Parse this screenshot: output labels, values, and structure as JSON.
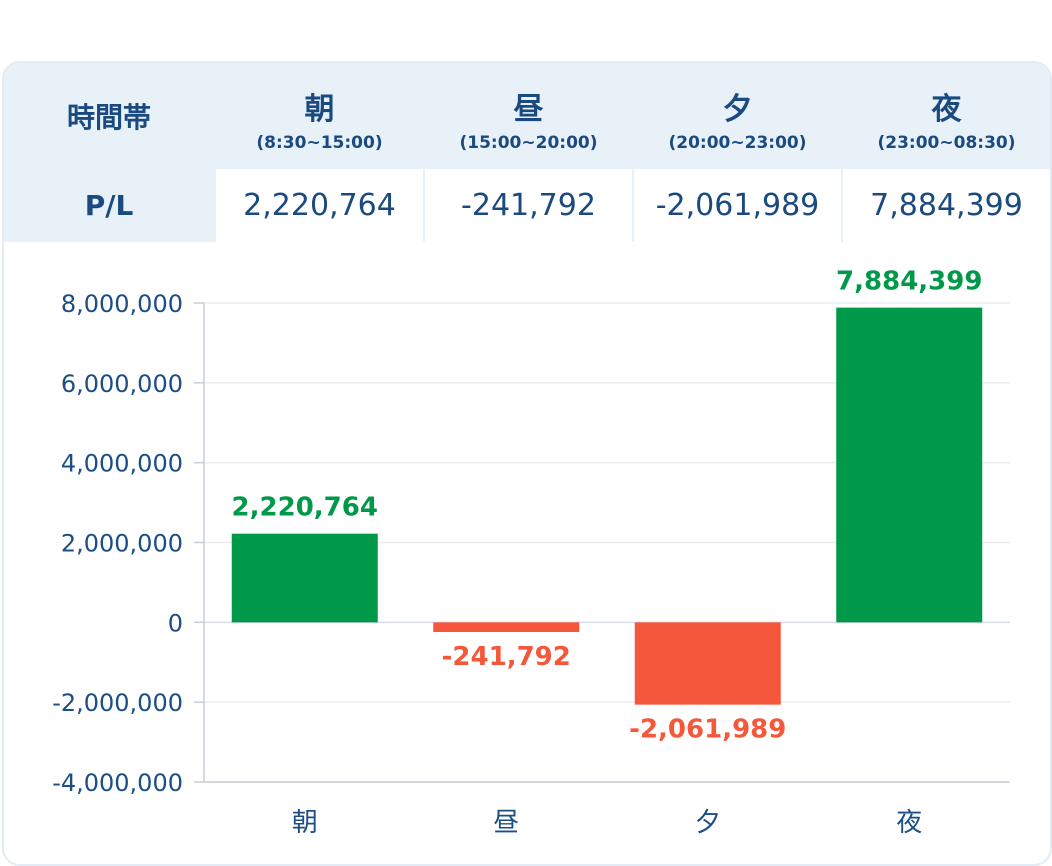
{
  "table": {
    "corner_label": "時間帯",
    "row_label": "P/L",
    "columns": [
      {
        "name": "朝",
        "range": "(8:30~15:00)",
        "value": "2,220,764"
      },
      {
        "name": "昼",
        "range": "(15:00~20:00)",
        "value": "-241,792"
      },
      {
        "name": "夕",
        "range": "(20:00~23:00)",
        "value": "-2,061,989"
      },
      {
        "name": "夜",
        "range": "(23:00~08:30)",
        "value": "7,884,399"
      }
    ]
  },
  "chart_data": {
    "type": "bar",
    "categories": [
      "朝",
      "昼",
      "夕",
      "夜"
    ],
    "values": [
      2220764,
      -241792,
      -2061989,
      7884399
    ],
    "value_labels": [
      "2,220,764",
      "-241,792",
      "-2,061,989",
      "7,884,399"
    ],
    "ylim": [
      -4000000,
      8000000
    ],
    "yticks": [
      8000000,
      6000000,
      4000000,
      2000000,
      0,
      -2000000,
      -4000000
    ],
    "ytick_labels": [
      "8,000,000",
      "6,000,000",
      "4,000,000",
      "2,000,000",
      "0",
      "-2,000,000",
      "-4,000,000"
    ],
    "grid": true,
    "colors": {
      "positive": "#00994a",
      "negative": "#f5573b"
    }
  }
}
